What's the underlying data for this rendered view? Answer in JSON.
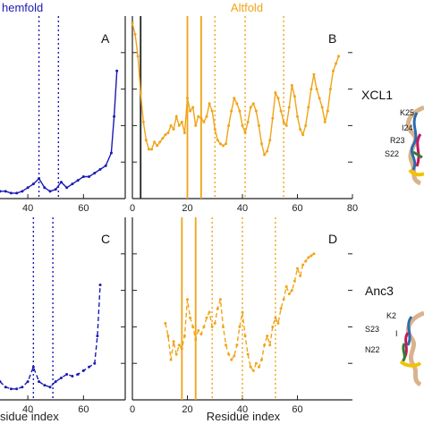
{
  "chart_data": [
    {
      "panel": "A",
      "type": "line",
      "title": "Chemfold",
      "xlim": [
        30,
        75
      ],
      "ylim": [
        0,
        1
      ],
      "xticks": [
        40,
        60
      ],
      "color": "#1a1ab4",
      "style": "solid",
      "vlines_dotted": [
        44,
        51
      ],
      "series": [
        {
          "x": [
            30,
            32,
            34,
            36,
            38,
            40,
            42,
            44,
            46,
            48,
            50,
            52,
            54,
            56,
            58,
            60,
            62,
            64,
            66,
            68,
            70,
            71,
            72
          ],
          "values": [
            0.04,
            0.04,
            0.03,
            0.03,
            0.04,
            0.06,
            0.08,
            0.11,
            0.06,
            0.04,
            0.05,
            0.09,
            0.06,
            0.08,
            0.1,
            0.12,
            0.12,
            0.14,
            0.16,
            0.18,
            0.25,
            0.45,
            0.7
          ]
        }
      ]
    },
    {
      "panel": "B",
      "type": "line",
      "title": "Altfold",
      "xlim": [
        0,
        80
      ],
      "ylim": [
        0,
        1
      ],
      "xticks": [
        0,
        20,
        40,
        60,
        80
      ],
      "color": "#f0a418",
      "style": "solid",
      "vlines_solid": [
        3,
        20,
        25
      ],
      "vlines_dotted": [
        30,
        41,
        55
      ],
      "series": [
        {
          "x": [
            0,
            1,
            2,
            3,
            4,
            5,
            6,
            7,
            8,
            9,
            10,
            11,
            12,
            13,
            14,
            15,
            16,
            17,
            18,
            19,
            20,
            21,
            22,
            23,
            24,
            25,
            26,
            27,
            28,
            29,
            30,
            31,
            32,
            33,
            34,
            35,
            36,
            37,
            38,
            39,
            40,
            41,
            42,
            43,
            44,
            45,
            46,
            47,
            48,
            49,
            50,
            51,
            52,
            53,
            54,
            55,
            56,
            57,
            58,
            59,
            60,
            61,
            62,
            63,
            64,
            65,
            66,
            67,
            68,
            69,
            70,
            71,
            72,
            73,
            74,
            75
          ],
          "values": [
            0.96,
            0.9,
            0.78,
            0.58,
            0.42,
            0.32,
            0.27,
            0.27,
            0.31,
            0.29,
            0.31,
            0.33,
            0.35,
            0.36,
            0.4,
            0.38,
            0.45,
            0.4,
            0.42,
            0.36,
            0.55,
            0.48,
            0.5,
            0.4,
            0.45,
            0.44,
            0.42,
            0.45,
            0.52,
            0.48,
            0.38,
            0.32,
            0.3,
            0.29,
            0.3,
            0.4,
            0.48,
            0.55,
            0.52,
            0.48,
            0.4,
            0.36,
            0.42,
            0.5,
            0.52,
            0.48,
            0.4,
            0.3,
            0.24,
            0.26,
            0.32,
            0.44,
            0.58,
            0.55,
            0.48,
            0.42,
            0.4,
            0.5,
            0.62,
            0.56,
            0.45,
            0.38,
            0.35,
            0.4,
            0.5,
            0.6,
            0.68,
            0.6,
            0.55,
            0.5,
            0.42,
            0.48,
            0.6,
            0.7,
            0.74,
            0.78
          ]
        }
      ]
    },
    {
      "panel": "C",
      "type": "line",
      "xlabel": "Residue index",
      "xlim": [
        30,
        75
      ],
      "ylim": [
        0,
        1
      ],
      "xticks": [
        40,
        60
      ],
      "color": "#1a1ab4",
      "style": "dashed",
      "vlines_dotted": [
        42,
        49
      ],
      "series": [
        {
          "x": [
            30,
            32,
            34,
            36,
            38,
            40,
            42,
            44,
            46,
            48,
            50,
            52,
            54,
            56,
            58,
            60,
            62,
            64,
            65,
            66
          ],
          "values": [
            0.1,
            0.07,
            0.06,
            0.06,
            0.07,
            0.1,
            0.18,
            0.1,
            0.08,
            0.07,
            0.1,
            0.12,
            0.14,
            0.13,
            0.14,
            0.16,
            0.18,
            0.2,
            0.35,
            0.63
          ]
        }
      ]
    },
    {
      "panel": "D",
      "type": "line",
      "xlabel": "Residue index",
      "xlim": [
        0,
        80
      ],
      "ylim": [
        0,
        1
      ],
      "xticks": [
        0,
        20,
        40,
        60
      ],
      "color": "#f0a418",
      "style": "dashed",
      "vlines_solid": [
        18,
        23
      ],
      "vlines_dotted": [
        29,
        40,
        52
      ],
      "series": [
        {
          "x": [
            12,
            13,
            14,
            15,
            16,
            17,
            18,
            19,
            20,
            21,
            22,
            23,
            24,
            25,
            26,
            27,
            28,
            29,
            30,
            31,
            32,
            33,
            34,
            35,
            36,
            37,
            38,
            39,
            40,
            41,
            42,
            43,
            44,
            45,
            46,
            47,
            48,
            49,
            50,
            51,
            52,
            53,
            54,
            55,
            56,
            57,
            58,
            59,
            60,
            61,
            62,
            63,
            64,
            65,
            66
          ],
          "values": [
            0.42,
            0.35,
            0.22,
            0.32,
            0.25,
            0.3,
            0.28,
            0.35,
            0.55,
            0.45,
            0.4,
            0.33,
            0.38,
            0.36,
            0.4,
            0.45,
            0.48,
            0.4,
            0.42,
            0.5,
            0.55,
            0.4,
            0.3,
            0.25,
            0.22,
            0.24,
            0.3,
            0.4,
            0.48,
            0.35,
            0.25,
            0.18,
            0.16,
            0.2,
            0.18,
            0.22,
            0.3,
            0.35,
            0.3,
            0.4,
            0.45,
            0.42,
            0.5,
            0.55,
            0.62,
            0.58,
            0.6,
            0.65,
            0.72,
            0.68,
            0.74,
            0.76,
            0.78,
            0.79,
            0.8
          ]
        }
      ]
    }
  ],
  "labels": {
    "title_left": "hemfold",
    "title_right": "Altfold",
    "panel_a": "A",
    "panel_b": "B",
    "panel_c": "C",
    "panel_d": "D",
    "xlabel_left": "sidue index",
    "xlabel_right": "Residue index",
    "side_top": "XCL1",
    "side_bottom": "Anc3",
    "res_top": [
      "K25",
      "I24",
      "R23",
      "S22"
    ],
    "res_bottom": [
      "K2",
      "S23",
      "I",
      "N22"
    ]
  }
}
